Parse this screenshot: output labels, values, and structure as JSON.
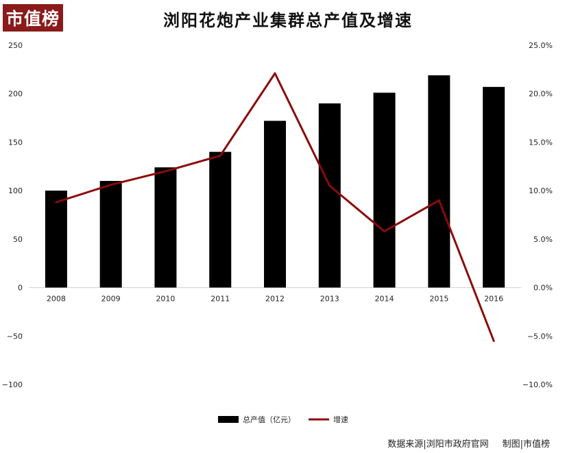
{
  "logo_text": "市值榜",
  "title": "浏阳花炮产业集群总产值及增速",
  "source": {
    "data_source": "数据来源|浏阳市政府官网",
    "made_by": "制图|市值榜"
  },
  "colors": {
    "bar": "#000000",
    "line": "#8b0a0a",
    "logo_bg": "#8b1a1a"
  },
  "chart_data": {
    "type": "bar",
    "title": "浏阳花炮产业集群总产值及增速",
    "categories": [
      "2008",
      "2009",
      "2010",
      "2011",
      "2012",
      "2013",
      "2014",
      "2015",
      "2016"
    ],
    "series": [
      {
        "name": "总产值（亿元）",
        "type": "bar",
        "axis": "left",
        "values": [
          100,
          110,
          124,
          140,
          172,
          190,
          201,
          219,
          207
        ]
      },
      {
        "name": "增速",
        "type": "line",
        "axis": "right",
        "values": [
          8.8,
          10.6,
          12.0,
          13.6,
          22.1,
          10.5,
          5.8,
          9.0,
          -5.5
        ]
      }
    ],
    "y_left": {
      "min": -100,
      "max": 250,
      "ticks": [
        250,
        200,
        150,
        100,
        50,
        0,
        -50,
        -100
      ],
      "tick_labels": [
        "250",
        "200",
        "150",
        "100",
        "50",
        "0",
        "−50",
        "−100"
      ]
    },
    "y_right": {
      "min": -10,
      "max": 25,
      "ticks": [
        25,
        20,
        15,
        10,
        5,
        0,
        -5,
        -10
      ],
      "tick_labels": [
        "25.0%",
        "20.0%",
        "15.0%",
        "10.0%",
        "5.0%",
        "0.0%",
        "−5.0%",
        "−10.0%"
      ]
    },
    "grid": false,
    "legend_position": "bottom"
  }
}
